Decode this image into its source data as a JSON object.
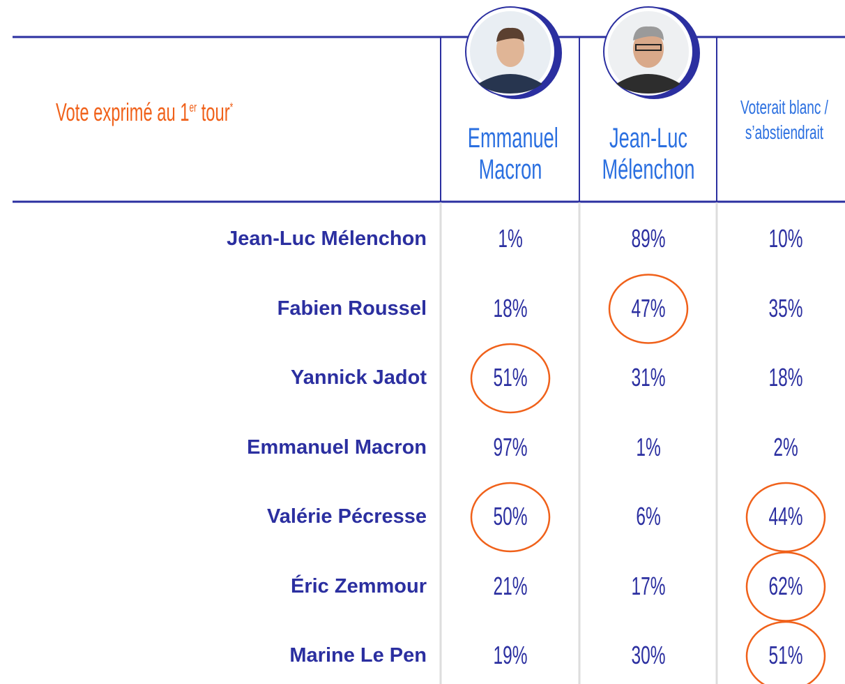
{
  "header": {
    "row_header": {
      "text": "Vote exprimé au 1",
      "superscript": "er",
      "text_end": "tour",
      "footnote_mark": "*"
    },
    "columns": [
      "Emmanuel Macron",
      "Jean-Luc Mélenchon",
      "Voterait blanc / s’abstiendrait"
    ]
  },
  "table": {
    "rows": [
      {
        "label": "Jean-Luc Mélenchon",
        "values": [
          "1%",
          "89%",
          "10%"
        ],
        "circled": [
          false,
          false,
          false
        ]
      },
      {
        "label": "Fabien Roussel",
        "values": [
          "18%",
          "47%",
          "35%"
        ],
        "circled": [
          false,
          true,
          false
        ]
      },
      {
        "label": "Yannick Jadot",
        "values": [
          "51%",
          "31%",
          "18%"
        ],
        "circled": [
          true,
          false,
          false
        ]
      },
      {
        "label": "Emmanuel Macron",
        "values": [
          "97%",
          "1%",
          "2%"
        ],
        "circled": [
          false,
          false,
          false
        ]
      },
      {
        "label": "Valérie Pécresse",
        "values": [
          "50%",
          "6%",
          "44%"
        ],
        "circled": [
          true,
          false,
          true
        ]
      },
      {
        "label": "Éric Zemmour",
        "values": [
          "21%",
          "17%",
          "62%"
        ],
        "circled": [
          false,
          false,
          true
        ]
      },
      {
        "label": "Marine Le Pen",
        "values": [
          "19%",
          "30%",
          "51%"
        ],
        "circled": [
          false,
          false,
          true
        ]
      }
    ]
  }
}
